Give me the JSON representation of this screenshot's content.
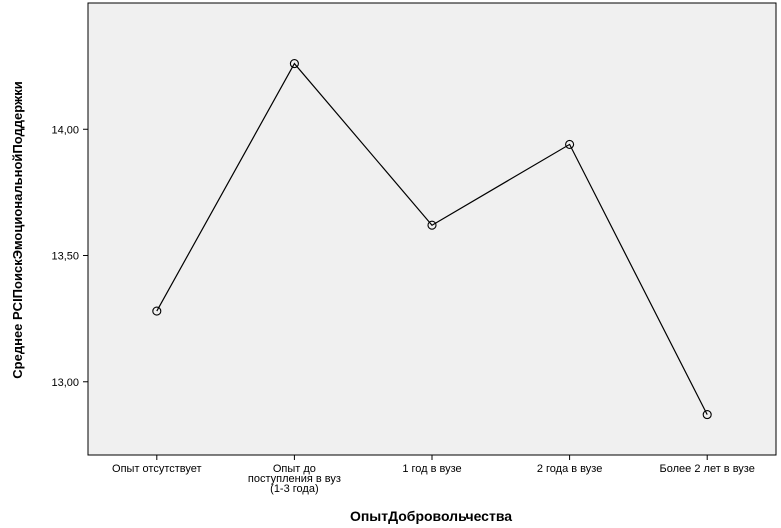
{
  "chart_data": {
    "type": "line",
    "title": "",
    "xlabel": "ОпытДобровольчества",
    "ylabel": "Среднее PCIПоискЭмоциональнойПоддержки",
    "categories": [
      [
        "Опыт отсутствует"
      ],
      [
        "Опыт до",
        "поступления в вуз",
        "(1-3 года)"
      ],
      [
        "1 год в вузе"
      ],
      [
        "2 года в вузе"
      ],
      [
        "Более 2 лет в вузе"
      ]
    ],
    "values": [
      13.28,
      14.26,
      13.62,
      13.94,
      12.87
    ],
    "y_ticks": [
      13.0,
      13.5,
      14.0
    ],
    "y_tick_labels": [
      "13,00",
      "13,50",
      "14,00"
    ],
    "ylim": [
      12.71,
      14.5
    ],
    "grid": false,
    "legend": "none",
    "colors": {
      "plot_background": "#f0f0f0",
      "line": "#000000",
      "frame": "#000000"
    }
  }
}
